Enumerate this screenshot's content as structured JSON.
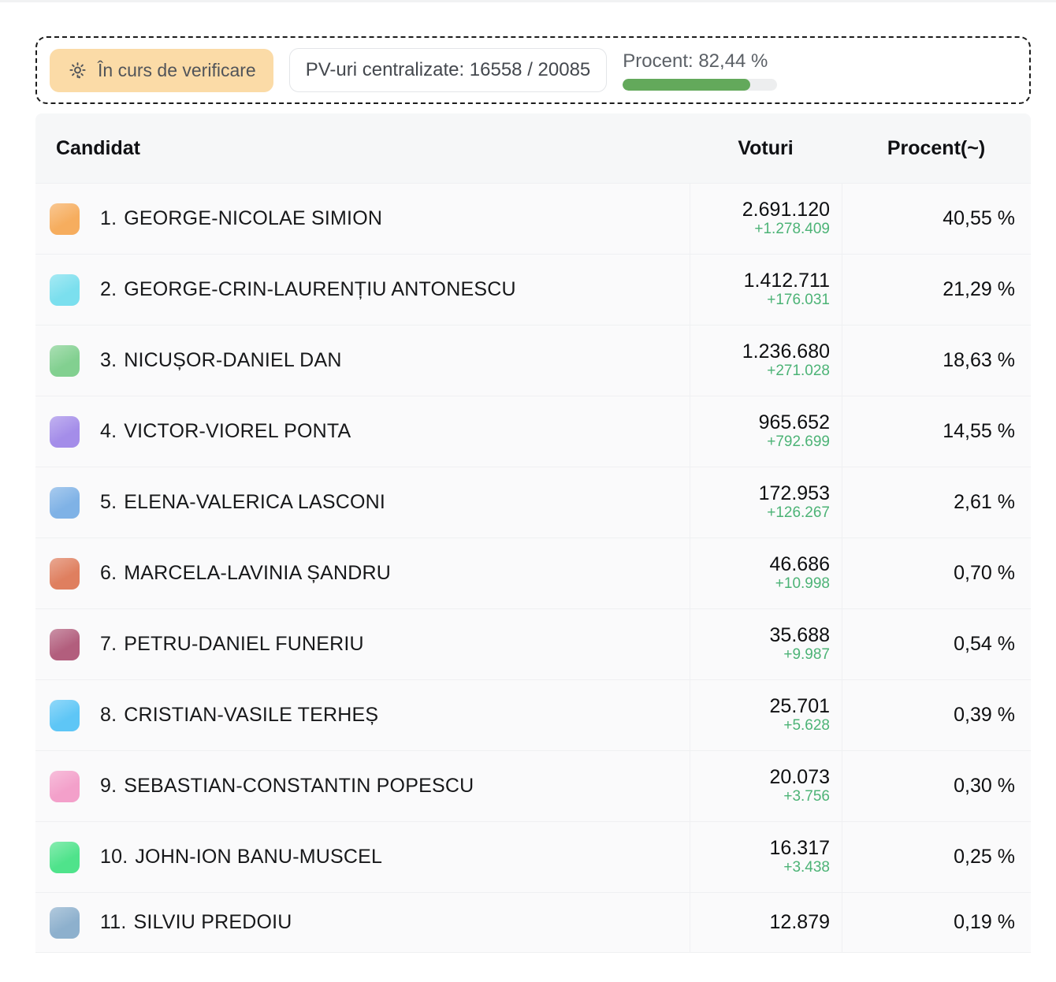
{
  "status_bar": {
    "badge_label": "În curs de verificare",
    "badge_bg": "#fbdba7",
    "pv_label": "PV-uri centralizate: 16558 / 20085",
    "progress": {
      "label": "Procent: 82,44 %",
      "percent": 82.44,
      "fill_color": "#63a95b"
    }
  },
  "table": {
    "headers": {
      "candidate": "Candidat",
      "votes": "Voturi",
      "percent": "Procent(~)"
    },
    "delta_color": "#4cb376",
    "rows": [
      {
        "rank": "1.",
        "name": "GEORGE-NICOLAE SIMION",
        "color": "#f6ad5e",
        "votes": "2.691.120",
        "delta": "+1.278.409",
        "percent": "40,55 %"
      },
      {
        "rank": "2.",
        "name": "GEORGE-CRIN-LAURENȚIU ANTONESCU",
        "color": "#7bdfee",
        "votes": "1.412.711",
        "delta": "+176.031",
        "percent": "21,29 %"
      },
      {
        "rank": "3.",
        "name": "NICUȘOR-DANIEL DAN",
        "color": "#82d090",
        "votes": "1.236.680",
        "delta": "+271.028",
        "percent": "18,63 %"
      },
      {
        "rank": "4.",
        "name": "VICTOR-VIOREL PONTA",
        "color": "#a48de9",
        "votes": "965.652",
        "delta": "+792.699",
        "percent": "14,55 %"
      },
      {
        "rank": "5.",
        "name": "ELENA-VALERICA LASCONI",
        "color": "#7fb2e6",
        "votes": "172.953",
        "delta": "+126.267",
        "percent": "2,61 %"
      },
      {
        "rank": "6.",
        "name": "MARCELA-LAVINIA ȘANDRU",
        "color": "#df7f5f",
        "votes": "46.686",
        "delta": "+10.998",
        "percent": "0,70 %"
      },
      {
        "rank": "7.",
        "name": "PETRU-DANIEL FUNERIU",
        "color": "#b25e7d",
        "votes": "35.688",
        "delta": "+9.987",
        "percent": "0,54 %"
      },
      {
        "rank": "8.",
        "name": "CRISTIAN-VASILE TERHEȘ",
        "color": "#5ec6f6",
        "votes": "25.701",
        "delta": "+5.628",
        "percent": "0,39 %"
      },
      {
        "rank": "9.",
        "name": "SEBASTIAN-CONSTANTIN POPESCU",
        "color": "#f3a0ca",
        "votes": "20.073",
        "delta": "+3.756",
        "percent": "0,30 %"
      },
      {
        "rank": "10.",
        "name": "JOHN-ION BANU-MUSCEL",
        "color": "#4fe38b",
        "votes": "16.317",
        "delta": "+3.438",
        "percent": "0,25 %"
      },
      {
        "rank": "11.",
        "name": "SILVIU PREDOIU",
        "color": "#8db0cd",
        "votes": "12.879",
        "delta": "",
        "percent": "0,19 %"
      }
    ]
  }
}
